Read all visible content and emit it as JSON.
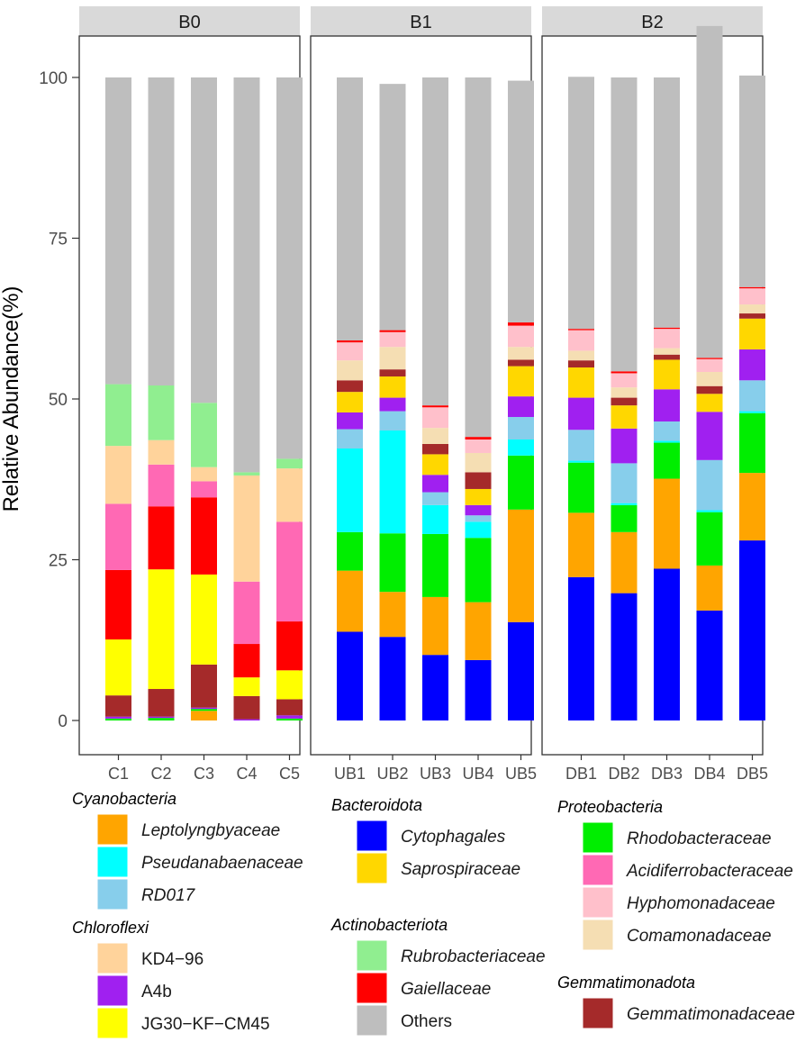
{
  "chart_data": {
    "type": "stacked-bar",
    "ylabel": "Relative Abundance(%)",
    "ylim": [
      0,
      100
    ],
    "yticks": [
      0,
      25,
      50,
      75,
      100
    ],
    "grid": false,
    "facets": [
      {
        "label": "B0",
        "samples": [
          "C1",
          "C2",
          "C3",
          "C4",
          "C5"
        ]
      },
      {
        "label": "B1",
        "samples": [
          "UB1",
          "UB2",
          "UB3",
          "UB4",
          "UB5"
        ]
      },
      {
        "label": "B2",
        "samples": [
          "DB1",
          "DB2",
          "DB3",
          "DB4",
          "DB5"
        ]
      }
    ],
    "series": [
      {
        "name": "Leptolyngbyaceae",
        "color": "#FFA500",
        "values": [
          0,
          0,
          1.5,
          0,
          0,
          9.5,
          7,
          9,
          9,
          17.5,
          10,
          9.5,
          14,
          7,
          10.5
        ]
      },
      {
        "name": "Pseudanabaenaceae",
        "color": "#00FFFF",
        "values": [
          0,
          0,
          0,
          0,
          0,
          13,
          16,
          4.5,
          2.5,
          2.5,
          0.3,
          0.3,
          0.3,
          0.3,
          0.3
        ]
      },
      {
        "name": "RD017",
        "color": "#87CEEB",
        "values": [
          0,
          0,
          0,
          0,
          0,
          3,
          3,
          2,
          1,
          3.5,
          4.8,
          6.2,
          3,
          7.8,
          4.8
        ]
      },
      {
        "name": "Cytophagales",
        "color": "#0000FF",
        "values": [
          0,
          0,
          0,
          0,
          0,
          13.8,
          13,
          10.2,
          9.4,
          15.3,
          22.3,
          19.8,
          23.6,
          17.1,
          28
        ]
      },
      {
        "name": "Saprospiraceae",
        "color": "#FFD700",
        "values": [
          0,
          0,
          0,
          0,
          0,
          3.2,
          3.3,
          3.2,
          2.5,
          4.7,
          4.7,
          3.6,
          4.6,
          2.8,
          4.8
        ]
      },
      {
        "name": "Rhodobacteraceae",
        "color": "#00EE00",
        "values": [
          0.3,
          0.4,
          0.3,
          0,
          0.3,
          6,
          9.1,
          9.8,
          10,
          8.4,
          7.8,
          4.2,
          5.6,
          8.3,
          9.3
        ]
      },
      {
        "name": "Acidiferrobacteraceae",
        "color": "#FF69B4",
        "values": [
          10.3,
          6.5,
          2.5,
          9.7,
          15.5,
          0,
          0,
          0,
          0,
          0,
          0,
          0,
          0,
          0,
          0
        ]
      },
      {
        "name": "Hyphomonadaceae",
        "color": "#FFC0CB",
        "values": [
          0,
          0,
          0,
          0,
          0,
          2.8,
          2.3,
          3.2,
          2.1,
          3.3,
          3.2,
          2.2,
          3,
          2,
          2.5
        ]
      },
      {
        "name": "Comamonadaceae",
        "color": "#F5DEB3",
        "values": [
          0,
          0,
          0,
          0,
          0,
          3.1,
          3.5,
          2.5,
          3,
          2,
          1.5,
          1.6,
          1,
          2.2,
          1.4
        ]
      },
      {
        "name": "Gemmatimonadaceae",
        "color": "#A52A2A",
        "values": [
          3.3,
          4.3,
          6.7,
          3.6,
          2.5,
          1.8,
          1.1,
          1.6,
          2.6,
          1,
          1.1,
          1.2,
          0.8,
          1.2,
          0.8
        ]
      },
      {
        "name": "Rubrobacteriaceae",
        "color": "#90EE90",
        "values": [
          9.6,
          8.5,
          10,
          0.5,
          1.5,
          0,
          0,
          0,
          0,
          0,
          0,
          0,
          0,
          0,
          0
        ]
      },
      {
        "name": "Gaiellaceae",
        "color": "#FF0000",
        "values": [
          10.8,
          9.8,
          12,
          5.2,
          7.6,
          0.3,
          0.3,
          0.3,
          0.4,
          0.5,
          0.2,
          0.3,
          0.2,
          0.2,
          0.2
        ]
      },
      {
        "name": "KD4-96",
        "color": "#FFD39B",
        "values": [
          9,
          3.8,
          2.2,
          16.5,
          8.3,
          0,
          0,
          0,
          0,
          0,
          0,
          0,
          0,
          0,
          0
        ]
      },
      {
        "name": "A4b",
        "color": "#A020F0",
        "values": [
          0.3,
          0.2,
          0.2,
          0.2,
          0.5,
          2.6,
          2.1,
          2.7,
          1.6,
          3.2,
          5,
          5.4,
          5,
          7.5,
          4.8
        ]
      },
      {
        "name": "JG30-KF-CM45",
        "color": "#FFFF00",
        "values": [
          8.7,
          18.6,
          14,
          2.9,
          4.5,
          0,
          0,
          0,
          0,
          0,
          0,
          0,
          0,
          0,
          0
        ]
      },
      {
        "name": "Others",
        "color": "#BEBEBE",
        "values": [
          47.7,
          47.9,
          50.6,
          61.4,
          59.3,
          40.9,
          38.3,
          51,
          55.9,
          37.6,
          39.2,
          45.7,
          38.9,
          51.6,
          32.9
        ]
      }
    ],
    "stack_order": [
      "Cytophagales",
      "Leptolyngbyaceae",
      "Rhodobacteraceae",
      "Pseudanabaenaceae",
      "RD017",
      "A4b",
      "Saprospiraceae",
      "Gemmatimonadaceae",
      "Comamonadaceae",
      "Hyphomonadaceae",
      "JG30-KF-CM45",
      "Gaiellaceae",
      "Acidiferrobacteraceae",
      "KD4-96",
      "Rubrobacteriaceae",
      "Others"
    ],
    "legend": [
      {
        "title": "Cyanobacteria",
        "entries": [
          {
            "label": "Leptolyngbyaceae",
            "italic": true
          },
          {
            "label": "Pseudanabaenaceae",
            "italic": true
          },
          {
            "label": "RD017",
            "italic": true
          }
        ]
      },
      {
        "title": "Chloroflexi",
        "entries": [
          {
            "label": "KD4−96",
            "italic": false
          },
          {
            "label": "A4b",
            "italic": false
          },
          {
            "label": "JG30−KF−CM45",
            "italic": false
          }
        ]
      },
      {
        "title": "Bacteroidota",
        "entries": [
          {
            "label": "Cytophagales",
            "italic": true
          },
          {
            "label": "Saprospiraceae",
            "italic": true
          }
        ]
      },
      {
        "title": "Actinobacteriota",
        "entries": [
          {
            "label": "Rubrobacteriaceae",
            "italic": true
          },
          {
            "label": "Gaiellaceae",
            "italic": true
          },
          {
            "label": "Others",
            "italic": false
          }
        ]
      },
      {
        "title": "Proteobacteria",
        "entries": [
          {
            "label": "Rhodobacteraceae",
            "italic": true
          },
          {
            "label": "Acidiferrobacteraceae",
            "italic": true
          },
          {
            "label": "Hyphomonadaceae",
            "italic": true
          },
          {
            "label": "Comamonadaceae",
            "italic": true
          }
        ]
      },
      {
        "title": "Gemmatimonadota",
        "entries": [
          {
            "label": "Gemmatimonadaceae",
            "italic": true
          }
        ]
      }
    ]
  }
}
